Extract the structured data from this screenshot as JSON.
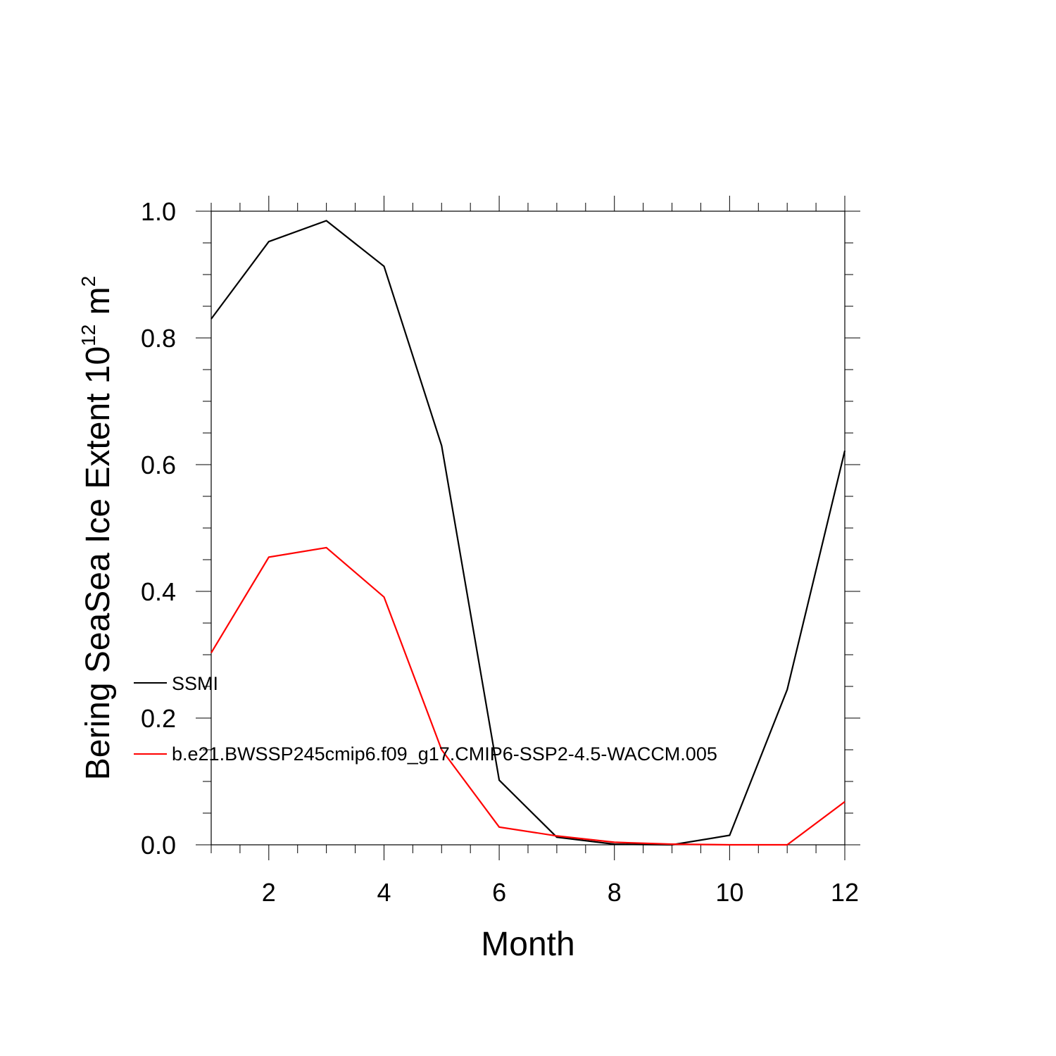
{
  "chart_data": {
    "type": "line",
    "title": "",
    "xlabel": "Month",
    "ylabel_main": "Bering SeaSea Ice Extent 10",
    "ylabel_sup": "12",
    "ylabel_unit": " m",
    "ylabel_unit_sup": "2",
    "xlim": [
      1,
      12
    ],
    "ylim": [
      0.0,
      1.0
    ],
    "x_major_ticks": [
      2,
      4,
      6,
      8,
      10,
      12
    ],
    "x_tick_labels": [
      "2",
      "4",
      "6",
      "8",
      "10",
      "12"
    ],
    "y_major_ticks": [
      0.0,
      0.2,
      0.4,
      0.6,
      0.8,
      1.0
    ],
    "y_tick_labels": [
      "0.0",
      "0.2",
      "0.4",
      "0.6",
      "0.8",
      "1.0"
    ],
    "x": [
      1,
      2,
      3,
      4,
      5,
      6,
      7,
      8,
      9,
      10,
      11,
      12
    ],
    "series": [
      {
        "name": "SSMI",
        "color": "#000000",
        "values": [
          0.83,
          0.952,
          0.985,
          0.913,
          0.63,
          0.102,
          0.012,
          0.001,
          0.0,
          0.015,
          0.245,
          0.622
        ]
      },
      {
        "name": "b.e21.BWSSP245cmip6.f09_g17.CMIP6-SSP2-4.5-WACCM.005",
        "color": "#ff0000",
        "values": [
          0.303,
          0.454,
          0.469,
          0.391,
          0.15,
          0.028,
          0.014,
          0.004,
          0.001,
          0.0,
          0.0,
          0.068
        ]
      }
    ],
    "legend_position": "lower-left",
    "grid": false
  }
}
